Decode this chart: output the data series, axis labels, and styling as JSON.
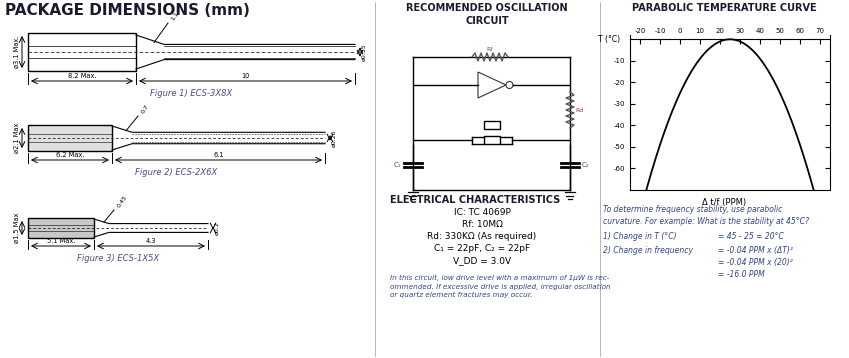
{
  "bg_color": "#ffffff",
  "section_title_color": "#1a1a2e",
  "fig_label_color": "#4a4a8a",
  "body_text_color": "#3a3a6a",
  "pkg_title": "PACKAGE DIMENSIONS (mm)",
  "fig1_label": "Figure 1) ECS-3X8X",
  "fig2_label": "Figure 2) ECS-2X6X",
  "fig3_label": "Figure 3) ECS-1X5X",
  "temp_axis_ticks": [
    -20,
    -10,
    0,
    10,
    20,
    30,
    40,
    50,
    60,
    70
  ],
  "ppm_axis_ticks": [
    -60,
    -50,
    -40,
    -30,
    -20,
    -10
  ],
  "temp_label": "Δ t/f (PPM)"
}
